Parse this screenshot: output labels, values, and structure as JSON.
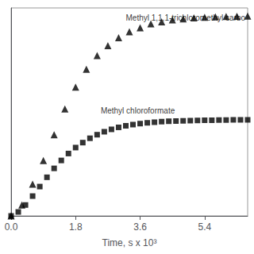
{
  "chart_data": {
    "type": "scatter",
    "xlabel": "Time, s x 10³",
    "xlim": [
      0,
      6600
    ],
    "ylim": [
      0,
      0.0105
    ],
    "xticks": [
      {
        "value": 0,
        "label": "0.0"
      },
      {
        "value": 1800,
        "label": "1.8"
      },
      {
        "value": 3600,
        "label": "3.6"
      },
      {
        "value": 5400,
        "label": "5.4"
      }
    ],
    "tick_labels": "x",
    "grid": false,
    "series": [
      {
        "marker": "triangle",
        "color": "black",
        "x": [
          0,
          300,
          600,
          900,
          1200,
          1500,
          1800,
          2100,
          2400,
          2700,
          3000,
          3300,
          3600,
          3900,
          4200,
          4500,
          4800,
          5100,
          5400,
          5700,
          6000,
          6300,
          6600
        ],
        "values": [
          0,
          0.00055,
          0.0016,
          0.0028,
          0.0041,
          0.0054,
          0.0065,
          0.0074,
          0.0081,
          0.0086,
          0.009,
          0.0093,
          0.0095,
          0.0097,
          0.0098,
          0.0099,
          0.00995,
          0.01,
          0.01003,
          0.01005,
          0.01007,
          0.01008,
          0.01009
        ]
      },
      {
        "marker": "square",
        "color": "black",
        "x": [
          0,
          200,
          400,
          600,
          800,
          1000,
          1200,
          1400,
          1600,
          1800,
          2000,
          2200,
          2400,
          2600,
          2800,
          3000,
          3200,
          3400,
          3600,
          3800,
          4000,
          4200,
          4400,
          4600,
          4800,
          5000,
          5200,
          5400,
          5600,
          5800,
          6000,
          6200,
          6400,
          6600
        ],
        "values": [
          0,
          0.0002,
          0.00055,
          0.001,
          0.00148,
          0.00195,
          0.0024,
          0.0028,
          0.00315,
          0.00345,
          0.0037,
          0.00392,
          0.0041,
          0.00425,
          0.00437,
          0.00447,
          0.00455,
          0.00461,
          0.00466,
          0.0047,
          0.00473,
          0.00476,
          0.00478,
          0.00479,
          0.0048,
          0.00481,
          0.00482,
          0.00483,
          0.00483,
          0.00484,
          0.00484,
          0.00485,
          0.00485,
          0.00485
        ]
      }
    ],
    "annotations": [
      {
        "text": "Methyl 1,1,1-trichloromethyl carbo",
        "x": 3200,
        "y": 0.0098
      },
      {
        "text": "Methyl chloroformate",
        "x": 2500,
        "y": 0.0051
      }
    ]
  }
}
